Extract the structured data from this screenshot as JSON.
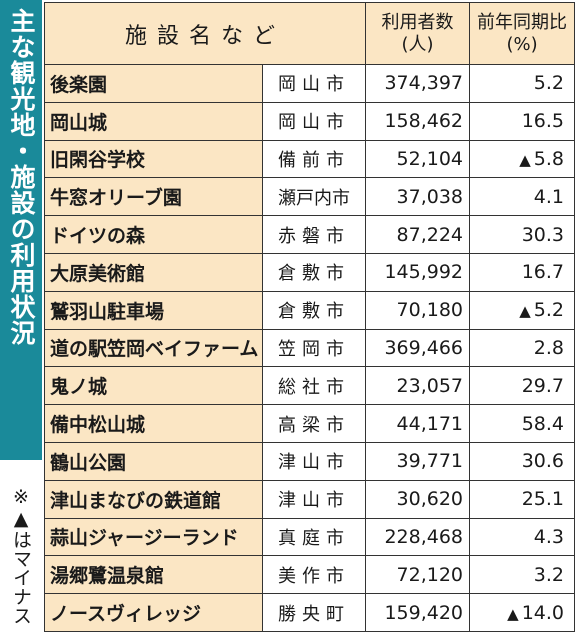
{
  "sidebar": {
    "title": "主な観光地・施設の利用状況",
    "note": "※▲はマイナス"
  },
  "colors": {
    "accent": "#1a8a9a",
    "header_bg": "#fbe6c4",
    "cell_bg": "#ffffff"
  },
  "table": {
    "header": {
      "name": "施設名など",
      "visitors_line1": "利用者数",
      "visitors_line2": "(人)",
      "ratio_line1": "前年同期比",
      "ratio_line2": "(%)"
    },
    "negative_mark": "▲",
    "rows": [
      {
        "name": "後楽園",
        "city": "岡山市",
        "visitors": "374,397",
        "ratio": "5.2",
        "negative": false
      },
      {
        "name": "岡山城",
        "city": "岡山市",
        "visitors": "158,462",
        "ratio": "16.5",
        "negative": false
      },
      {
        "name": "旧閑谷学校",
        "city": "備前市",
        "visitors": "52,104",
        "ratio": "5.8",
        "negative": true
      },
      {
        "name": "牛窓オリーブ園",
        "city": "瀬戸内市",
        "visitors": "37,038",
        "ratio": "4.1",
        "negative": false
      },
      {
        "name": "ドイツの森",
        "city": "赤磐市",
        "visitors": "87,224",
        "ratio": "30.3",
        "negative": false
      },
      {
        "name": "大原美術館",
        "city": "倉敷市",
        "visitors": "145,992",
        "ratio": "16.7",
        "negative": false
      },
      {
        "name": "鷲羽山駐車場",
        "city": "倉敷市",
        "visitors": "70,180",
        "ratio": "5.2",
        "negative": true
      },
      {
        "name": "道の駅笠岡ベイファーム",
        "city": "笠岡市",
        "visitors": "369,466",
        "ratio": "2.8",
        "negative": false
      },
      {
        "name": "鬼ノ城",
        "city": "総社市",
        "visitors": "23,057",
        "ratio": "29.7",
        "negative": false
      },
      {
        "name": "備中松山城",
        "city": "高梁市",
        "visitors": "44,171",
        "ratio": "58.4",
        "negative": false
      },
      {
        "name": "鶴山公園",
        "city": "津山市",
        "visitors": "39,771",
        "ratio": "30.6",
        "negative": false
      },
      {
        "name": "津山まなびの鉄道館",
        "city": "津山市",
        "visitors": "30,620",
        "ratio": "25.1",
        "negative": false
      },
      {
        "name": "蒜山ジャージーランド",
        "city": "真庭市",
        "visitors": "228,468",
        "ratio": "4.3",
        "negative": false
      },
      {
        "name": "湯郷鷺温泉館",
        "city": "美作市",
        "visitors": "72,120",
        "ratio": "3.2",
        "negative": false
      },
      {
        "name": "ノースヴィレッジ",
        "city": "勝央町",
        "visitors": "159,420",
        "ratio": "14.0",
        "negative": true
      }
    ]
  },
  "chart_data": {
    "type": "table",
    "title": "主な観光地・施設の利用状況",
    "columns": [
      "施設名など",
      "",
      "利用者数(人)",
      "前年同期比(%)"
    ],
    "visitors": [
      374397,
      158462,
      52104,
      37038,
      87224,
      145992,
      70180,
      369466,
      23057,
      44171,
      39771,
      30620,
      228468,
      72120,
      159420
    ],
    "yoy_percent": [
      5.2,
      16.5,
      -5.8,
      4.1,
      30.3,
      16.7,
      -5.2,
      2.8,
      29.7,
      58.4,
      30.6,
      25.1,
      4.3,
      3.2,
      -14.0
    ]
  }
}
